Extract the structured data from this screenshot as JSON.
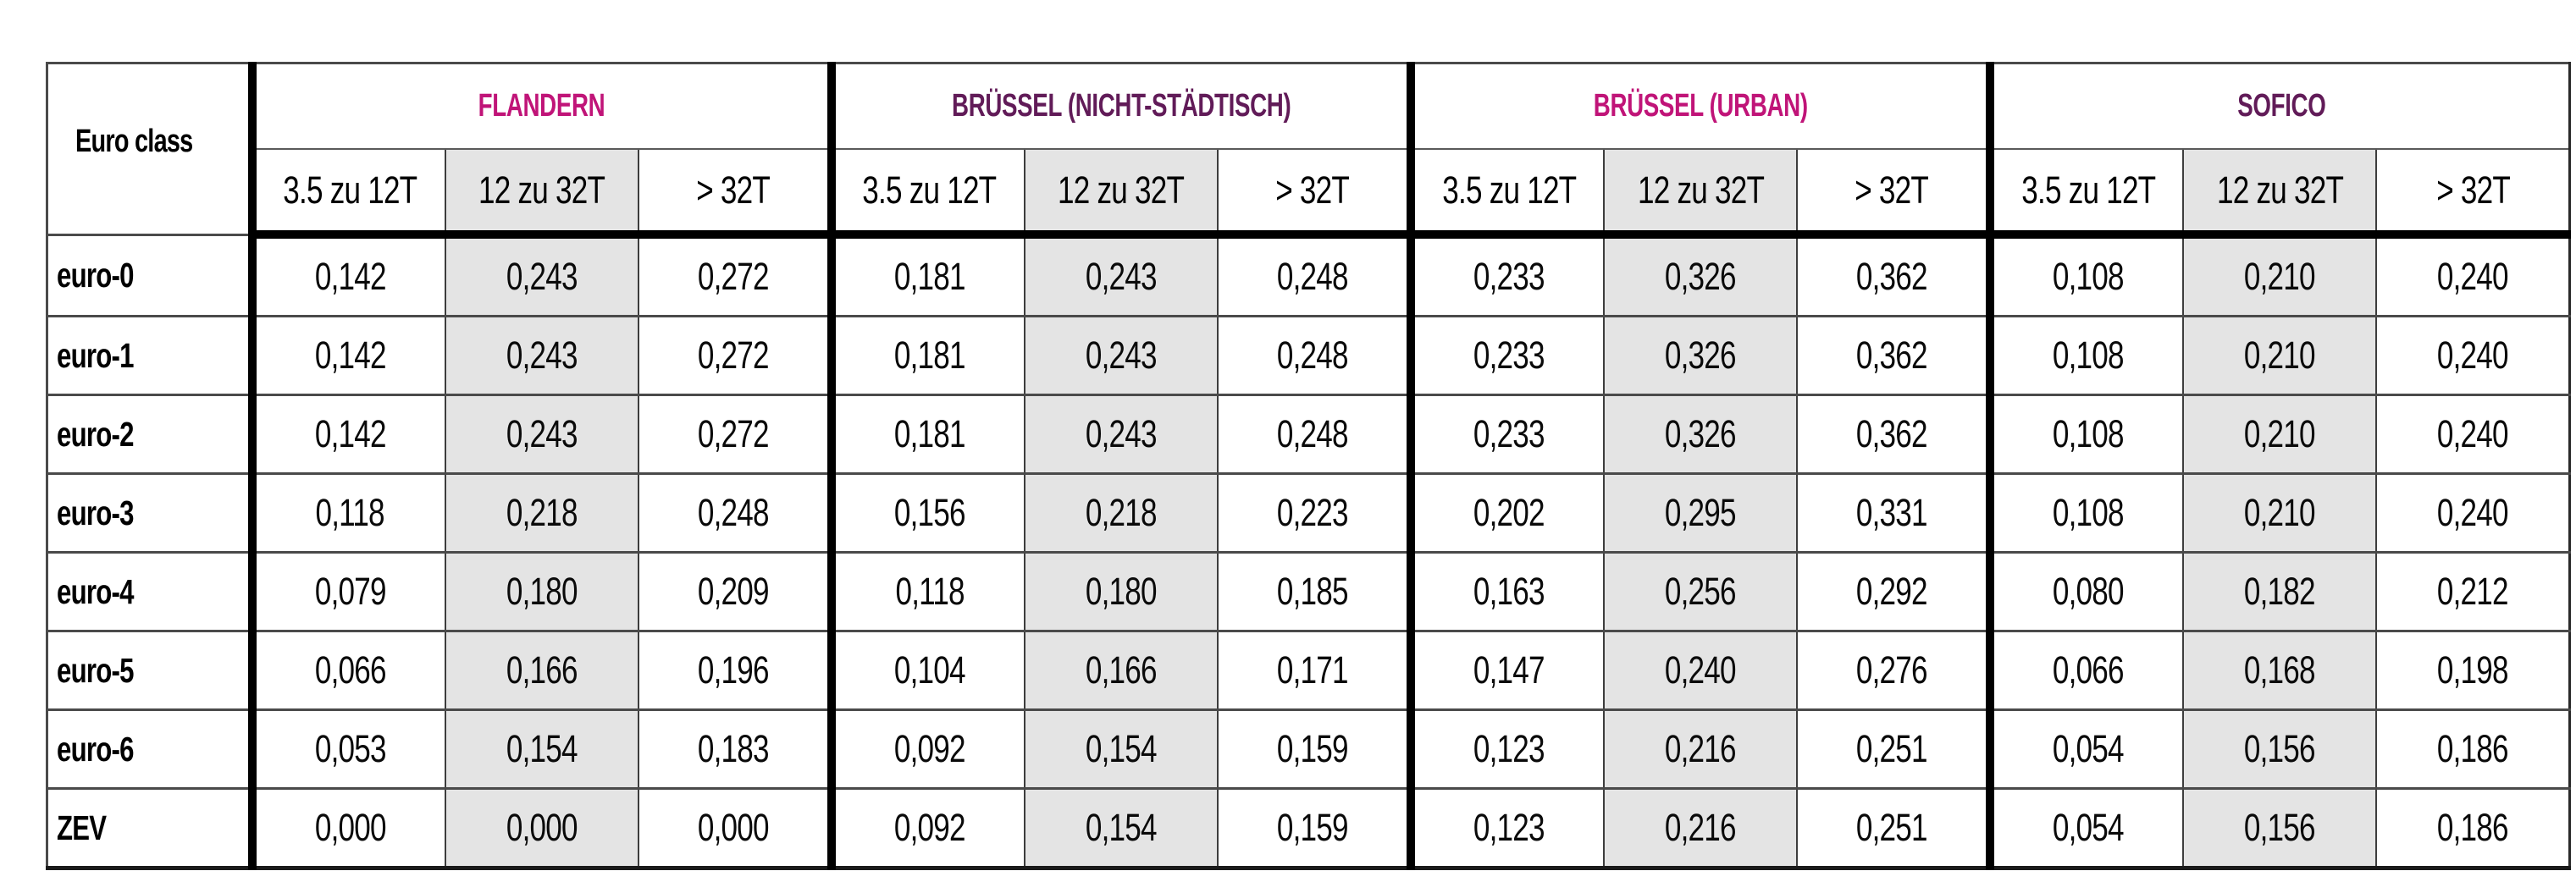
{
  "table": {
    "corner_label": "Euro class",
    "shade_color": "#e4e4e4",
    "regions": [
      {
        "name": "FLANDERN",
        "color": "#c01478"
      },
      {
        "name": "BRÜSSEL (NICHT-STÄDTISCH)",
        "color": "#611b58"
      },
      {
        "name": "BRÜSSEL (URBAN)",
        "color": "#c01478"
      },
      {
        "name": "SOFICO",
        "color": "#611b58"
      }
    ],
    "weight_classes": [
      "3.5 zu 12T",
      "12 zu 32T",
      "> 32T"
    ],
    "rows": [
      {
        "label": "euro-0",
        "values": [
          "0,142",
          "0,243",
          "0,272",
          "0,181",
          "0,243",
          "0,248",
          "0,233",
          "0,326",
          "0,362",
          "0,108",
          "0,210",
          "0,240"
        ]
      },
      {
        "label": "euro-1",
        "values": [
          "0,142",
          "0,243",
          "0,272",
          "0,181",
          "0,243",
          "0,248",
          "0,233",
          "0,326",
          "0,362",
          "0,108",
          "0,210",
          "0,240"
        ]
      },
      {
        "label": "euro-2",
        "values": [
          "0,142",
          "0,243",
          "0,272",
          "0,181",
          "0,243",
          "0,248",
          "0,233",
          "0,326",
          "0,362",
          "0,108",
          "0,210",
          "0,240"
        ]
      },
      {
        "label": "euro-3",
        "values": [
          "0,118",
          "0,218",
          "0,248",
          "0,156",
          "0,218",
          "0,223",
          "0,202",
          "0,295",
          "0,331",
          "0,108",
          "0,210",
          "0,240"
        ]
      },
      {
        "label": "euro-4",
        "values": [
          "0,079",
          "0,180",
          "0,209",
          "0,118",
          "0,180",
          "0,185",
          "0,163",
          "0,256",
          "0,292",
          "0,080",
          "0,182",
          "0,212"
        ]
      },
      {
        "label": "euro-5",
        "values": [
          "0,066",
          "0,166",
          "0,196",
          "0,104",
          "0,166",
          "0,171",
          "0,147",
          "0,240",
          "0,276",
          "0,066",
          "0,168",
          "0,198"
        ]
      },
      {
        "label": "euro-6",
        "values": [
          "0,053",
          "0,154",
          "0,183",
          "0,092",
          "0,154",
          "0,159",
          "0,123",
          "0,216",
          "0,251",
          "0,054",
          "0,156",
          "0,186"
        ]
      },
      {
        "label": "ZEV",
        "values": [
          "0,000",
          "0,000",
          "0,000",
          "0,092",
          "0,154",
          "0,159",
          "0,123",
          "0,216",
          "0,251",
          "0,054",
          "0,156",
          "0,186"
        ]
      }
    ]
  }
}
